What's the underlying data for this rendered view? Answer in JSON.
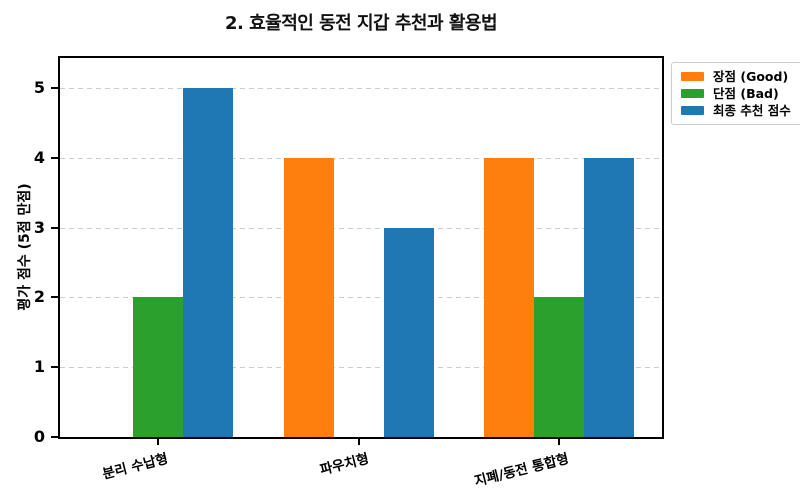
{
  "chart_data": {
    "type": "bar",
    "title": "2. 효율적인 동전 지갑 추천과 활용법",
    "ylabel": "평가 점수 (5점 만점)",
    "xlabel": "",
    "categories": [
      "분리 수납형",
      "파우치형",
      "지폐/동전 통합형"
    ],
    "series": [
      {
        "name": "장점 (Good)",
        "color": "#ff7f0e",
        "values": [
          0,
          4,
          4
        ]
      },
      {
        "name": "단점 (Bad)",
        "color": "#2ca02c",
        "values": [
          2,
          0,
          2
        ]
      },
      {
        "name": "최종 추천 점수",
        "color": "#1f77b4",
        "values": [
          5,
          3,
          4
        ]
      }
    ],
    "yticks": [
      0,
      1,
      2,
      3,
      4,
      5
    ],
    "ylim": [
      0,
      5.5
    ],
    "grid": "horizontal-dashed",
    "legend_position": "upper-right"
  },
  "colors": {
    "background": "#ffffff",
    "spine": "#000000",
    "grid": "#cdcdcd",
    "legend_border": "#cccccc",
    "text": "#000000"
  }
}
